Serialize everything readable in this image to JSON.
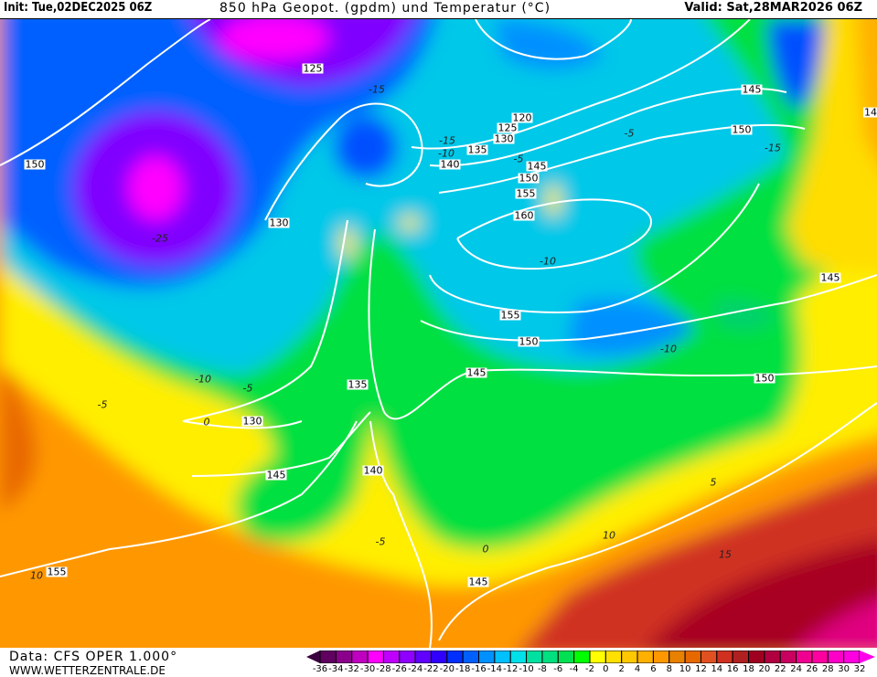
{
  "header": {
    "init": "Init: Tue,02DEC2025 06Z",
    "title": "850 hPa Geopot. (gpdm) und Temperatur (°C)",
    "valid": "Valid: Sat,28MAR2026 06Z"
  },
  "footer": {
    "data_source": "Data: CFS OPER 1.000°",
    "website": "WWW.WETTERZENTRALE.DE"
  },
  "legend": {
    "labels": [
      "-36",
      "-34",
      "-32",
      "-30",
      "-28",
      "-26",
      "-24",
      "-22",
      "-20",
      "-18",
      "-16",
      "-14",
      "-12",
      "-10",
      "-8",
      "-6",
      "-4",
      "-2",
      "0",
      "2",
      "4",
      "6",
      "8",
      "10",
      "12",
      "14",
      "16",
      "18",
      "20",
      "22",
      "24",
      "26",
      "28",
      "30",
      "32"
    ],
    "below_color": "#3a0040",
    "above_color": "#ff00e8",
    "colors": [
      "#600060",
      "#8b008b",
      "#c000c0",
      "#ff00ff",
      "#c000ff",
      "#9000ff",
      "#6000ff",
      "#3000ff",
      "#0030ff",
      "#0060ff",
      "#0090ff",
      "#00c0ff",
      "#00e0e8",
      "#00e0a0",
      "#00e080",
      "#00e050",
      "#00ff00",
      "#ffff00",
      "#ffe000",
      "#ffc800",
      "#ffb000",
      "#ff9800",
      "#e88000",
      "#e86800",
      "#e05020",
      "#d03020",
      "#b02020",
      "#a00020",
      "#b00040",
      "#c80060",
      "#f00090",
      "#ff00a0",
      "#ff00c8",
      "#ff00e0"
    ]
  },
  "geopotential_labels": [
    "125",
    "150",
    "130",
    "135",
    "140",
    "145",
    "150",
    "155",
    "160",
    "120",
    "125",
    "130",
    "145",
    "150",
    "145",
    "155",
    "150",
    "145",
    "135",
    "130",
    "145",
    "140",
    "150",
    "155",
    "145",
    "14"
  ],
  "temperature_labels": [
    "-15",
    "-15",
    "-15",
    "-10",
    "-5",
    "-5",
    "-25",
    "-10",
    "-10",
    "-10",
    "-5",
    "-5",
    "0",
    "-5",
    "0",
    "5",
    "10",
    "15",
    "10"
  ]
}
